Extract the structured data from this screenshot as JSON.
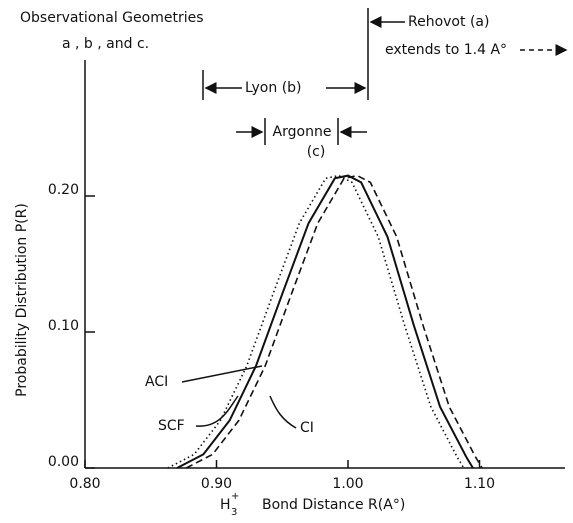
{
  "chart_data": {
    "type": "line",
    "y_label": "Probability Distribution P(R)",
    "x_label_symbol": "H",
    "x_label_subscript": "3",
    "x_label_superscript": "+",
    "x_label": "Bond Distance R(A°)",
    "annotations": [
      "Observational Geometries",
      "a , b , and c.",
      "Rehovot (a)",
      "extends to 1.4 A°",
      "Lyon (b)",
      "Argonne",
      "(c)",
      "ACI",
      "SCF",
      "CI"
    ],
    "xlim": [
      0.8,
      1.165
    ],
    "ylim": [
      0,
      0.3
    ],
    "xticks": [
      {
        "value": 0.8,
        "label": "0.80"
      },
      {
        "value": 0.9,
        "label": "0.90"
      },
      {
        "value": 1.0,
        "label": "1.00"
      },
      {
        "value": 1.1,
        "label": "1.10"
      }
    ],
    "yticks": [
      {
        "value": 0,
        "label": "0.00"
      },
      {
        "value": 0.1,
        "label": "0.10"
      },
      {
        "value": 0.2,
        "label": "0.20"
      }
    ],
    "series": [
      {
        "style": "solid",
        "color": "#111111",
        "x": [
          0.87,
          0.89,
          0.91,
          0.93,
          0.95,
          0.97,
          0.99,
          1.0,
          1.01,
          1.03,
          1.05,
          1.07,
          1.09,
          1.095
        ],
        "values": [
          0,
          0.01,
          0.035,
          0.075,
          0.128,
          0.18,
          0.213,
          0.215,
          0.21,
          0.17,
          0.105,
          0.045,
          0.008,
          0
        ]
      },
      {
        "style": "dotted",
        "color": "#111111",
        "x": [
          0.863,
          0.883,
          0.903,
          0.923,
          0.943,
          0.963,
          0.983,
          0.993,
          1.003,
          1.023,
          1.043,
          1.063,
          1.083,
          1.088
        ],
        "values": [
          0,
          0.01,
          0.035,
          0.075,
          0.128,
          0.18,
          0.213,
          0.215,
          0.21,
          0.17,
          0.105,
          0.045,
          0.008,
          0
        ]
      },
      {
        "style": "dashed",
        "color": "#111111",
        "x": [
          0.877,
          0.897,
          0.917,
          0.937,
          0.957,
          0.977,
          0.997,
          1.007,
          1.017,
          1.037,
          1.057,
          1.077,
          1.097,
          1.102
        ],
        "values": [
          0,
          0.01,
          0.035,
          0.075,
          0.128,
          0.18,
          0.213,
          0.215,
          0.21,
          0.17,
          0.105,
          0.045,
          0.008,
          0
        ]
      }
    ]
  }
}
